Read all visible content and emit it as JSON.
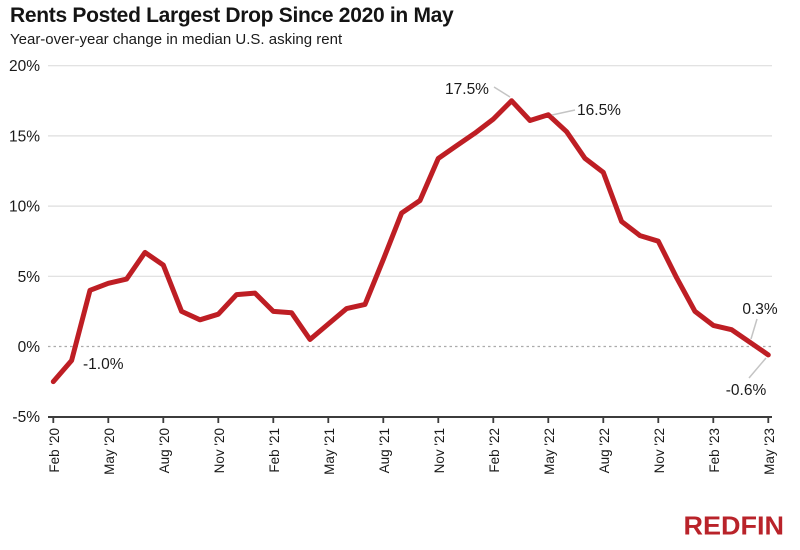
{
  "header": {
    "title": "Rents Posted Largest Drop Since 2020 in May",
    "subtitle": "Year-over-year change in median U.S. asking rent"
  },
  "branding": {
    "logo_text": "REDFIN",
    "logo_color": "#B9232A"
  },
  "colors": {
    "line": "#BE1E24",
    "grid": "#DEDEDE",
    "zero_line": "#ABABAB",
    "axis": "#3C3C3C",
    "text": "#1A1A1A",
    "leader": "#C4C4C4",
    "background": "#FFFFFF"
  },
  "chart_data": {
    "type": "line",
    "title": "Rents Posted Largest Drop Since 2020 in May",
    "subtitle": "Year-over-year change in median U.S. asking rent",
    "x": [
      "Feb '20",
      "Mar '20",
      "Apr '20",
      "May '20",
      "Jun '20",
      "Jul '20",
      "Aug '20",
      "Sep '20",
      "Oct '20",
      "Nov '20",
      "Dec '20",
      "Jan '21",
      "Feb '21",
      "Mar '21",
      "Apr '21",
      "May '21",
      "Jun '21",
      "Jul '21",
      "Aug '21",
      "Sep '21",
      "Oct '21",
      "Nov '21",
      "Dec '21",
      "Jan '22",
      "Feb '22",
      "Mar '22",
      "Apr '22",
      "May '22",
      "Jun '22",
      "Jul '22",
      "Aug '22",
      "Sep '22",
      "Oct '22",
      "Nov '22",
      "Dec '22",
      "Jan '23",
      "Feb '23",
      "Mar '23",
      "Apr '23",
      "May '23"
    ],
    "values": [
      -2.5,
      -1.0,
      4.0,
      4.5,
      4.8,
      6.7,
      5.8,
      2.5,
      1.9,
      2.3,
      3.7,
      3.8,
      2.5,
      2.4,
      0.5,
      1.6,
      2.7,
      3.0,
      6.2,
      9.5,
      10.4,
      13.4,
      14.3,
      15.2,
      16.2,
      17.5,
      16.1,
      16.5,
      15.3,
      13.4,
      12.4,
      8.9,
      7.9,
      7.5,
      4.9,
      2.5,
      1.5,
      1.2,
      0.3,
      -0.6
    ],
    "x_tick_every": 3,
    "x_tick_labels": [
      "Feb '20",
      "May '20",
      "Aug '20",
      "Nov '20",
      "Feb '21",
      "May '21",
      "Aug '21",
      "Nov '21",
      "Feb '22",
      "May '22",
      "Aug '22",
      "Nov '22",
      "Feb '23",
      "May '23"
    ],
    "y_ticks": [
      {
        "label": "20%",
        "value": 20
      },
      {
        "label": "15%",
        "value": 15
      },
      {
        "label": "10%",
        "value": 10
      },
      {
        "label": "5%",
        "value": 5
      },
      {
        "label": "0%",
        "value": 0
      },
      {
        "label": "-5%",
        "value": -5
      }
    ],
    "ylim": [
      -5,
      20
    ],
    "grid": "horizontal",
    "zero_line": "dashed",
    "legend": "none",
    "annotations": [
      {
        "text": "-1.0%",
        "month": "Mar '20",
        "index": 1
      },
      {
        "text": "17.5%",
        "month": "Mar '22",
        "index": 25
      },
      {
        "text": "16.5%",
        "month": "May '22",
        "index": 27
      },
      {
        "text": "0.3%",
        "month": "Apr '23",
        "index": 38
      },
      {
        "text": "-0.6%",
        "month": "May '23",
        "index": 39
      }
    ]
  }
}
